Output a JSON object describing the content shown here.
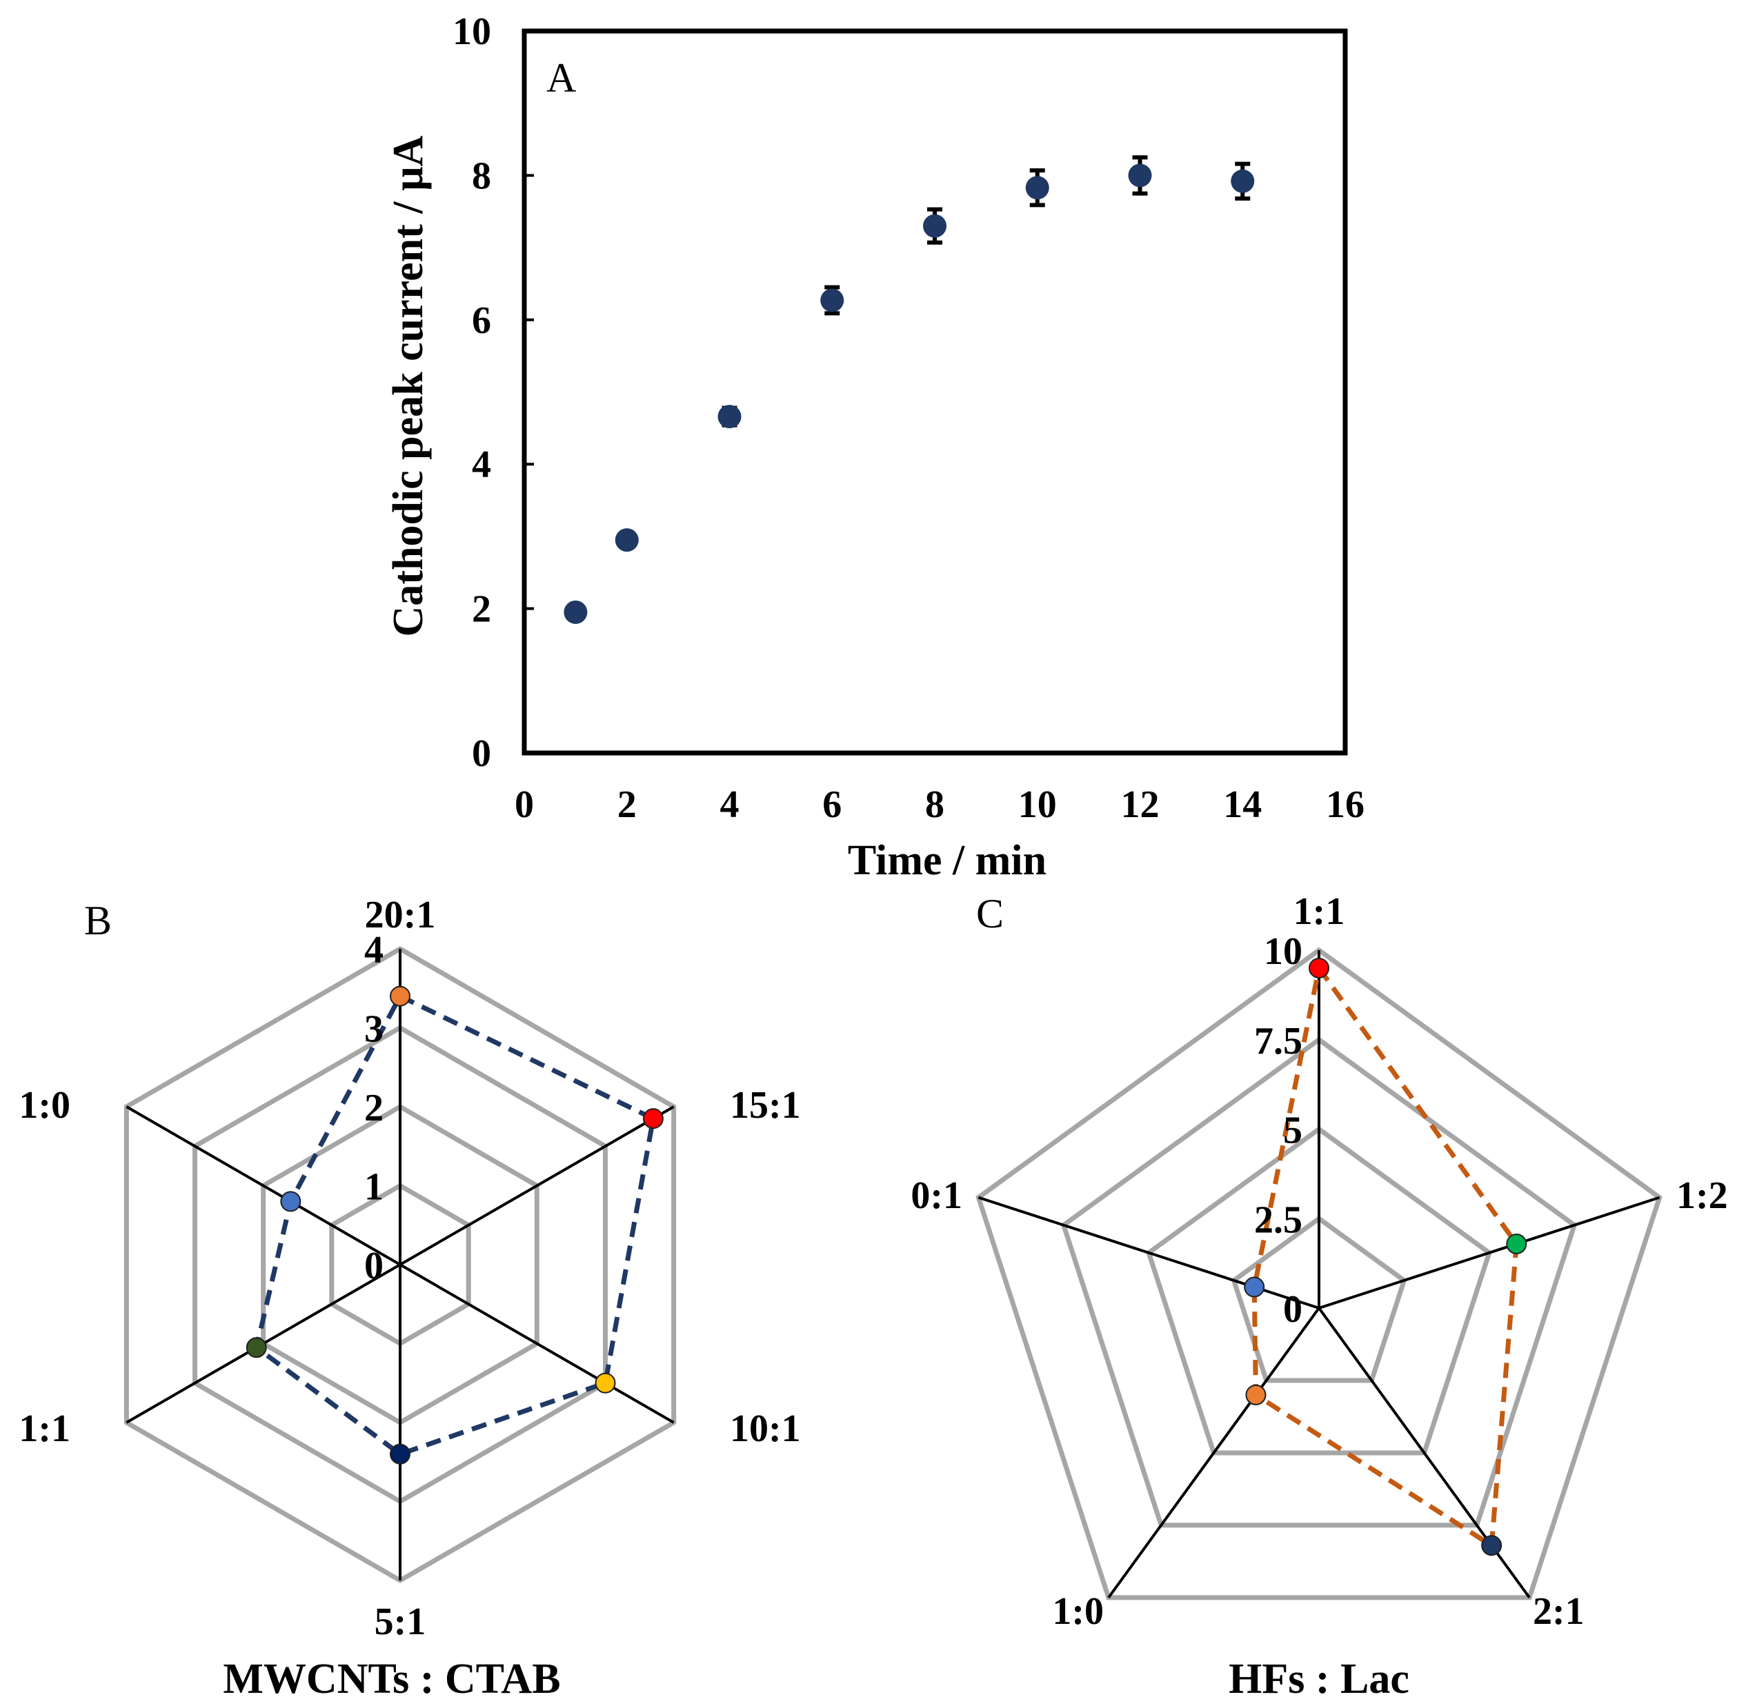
{
  "chart_data": [
    {
      "panel": "A",
      "type": "scatter",
      "xlabel": "Time / min",
      "ylabel": "Cathodic peak current / µA",
      "xlim": [
        0,
        16
      ],
      "ylim": [
        0,
        10
      ],
      "x_ticks": [
        "0",
        "2",
        "4",
        "6",
        "8",
        "10",
        "12",
        "14",
        "16"
      ],
      "y_ticks": [
        "0",
        "2",
        "4",
        "6",
        "8",
        "10"
      ],
      "marker_color": "#1f3864",
      "points": [
        {
          "x": 1,
          "y": 1.95,
          "err": 0
        },
        {
          "x": 2,
          "y": 2.95,
          "err": 0
        },
        {
          "x": 4,
          "y": 4.66,
          "err": 0.12
        },
        {
          "x": 6,
          "y": 6.27,
          "err": 0.18
        },
        {
          "x": 8,
          "y": 7.3,
          "err": 0.23
        },
        {
          "x": 10,
          "y": 7.83,
          "err": 0.24
        },
        {
          "x": 12,
          "y": 8.0,
          "err": 0.25
        },
        {
          "x": 14,
          "y": 7.92,
          "err": 0.24
        }
      ]
    },
    {
      "panel": "B",
      "type": "radar",
      "xlabel": "MWCNTs : CTAB",
      "rmax": 4,
      "r_ticks": [
        "0",
        "1",
        "2",
        "3",
        "4"
      ],
      "line_color": "#1f3864",
      "axes": [
        {
          "label": "20:1",
          "value": 3.4,
          "color": "#ed7d31"
        },
        {
          "label": "15:1",
          "value": 3.7,
          "color": "#ff0000"
        },
        {
          "label": "10:1",
          "value": 3.0,
          "color": "#ffc000"
        },
        {
          "label": "5:1",
          "value": 2.4,
          "color": "#002060"
        },
        {
          "label": "1:1",
          "value": 2.1,
          "color": "#375623"
        },
        {
          "label": "1:0",
          "value": 1.6,
          "color": "#4472c4"
        }
      ]
    },
    {
      "panel": "C",
      "type": "radar",
      "xlabel": "HFs : Lac",
      "rmax": 10,
      "r_ticks": [
        "0",
        "2.5",
        "5",
        "7.5",
        "10"
      ],
      "line_color": "#c55a11",
      "axes": [
        {
          "label": "1:1",
          "value": 9.5,
          "color": "#ff0000"
        },
        {
          "label": "1:2",
          "value": 5.8,
          "color": "#00b050"
        },
        {
          "label": "2:1",
          "value": 8.2,
          "color": "#1f3864"
        },
        {
          "label": "1:0",
          "value": 3.0,
          "color": "#ed7d31"
        },
        {
          "label": "0:1",
          "value": 1.9,
          "color": "#4472c4"
        }
      ]
    }
  ]
}
